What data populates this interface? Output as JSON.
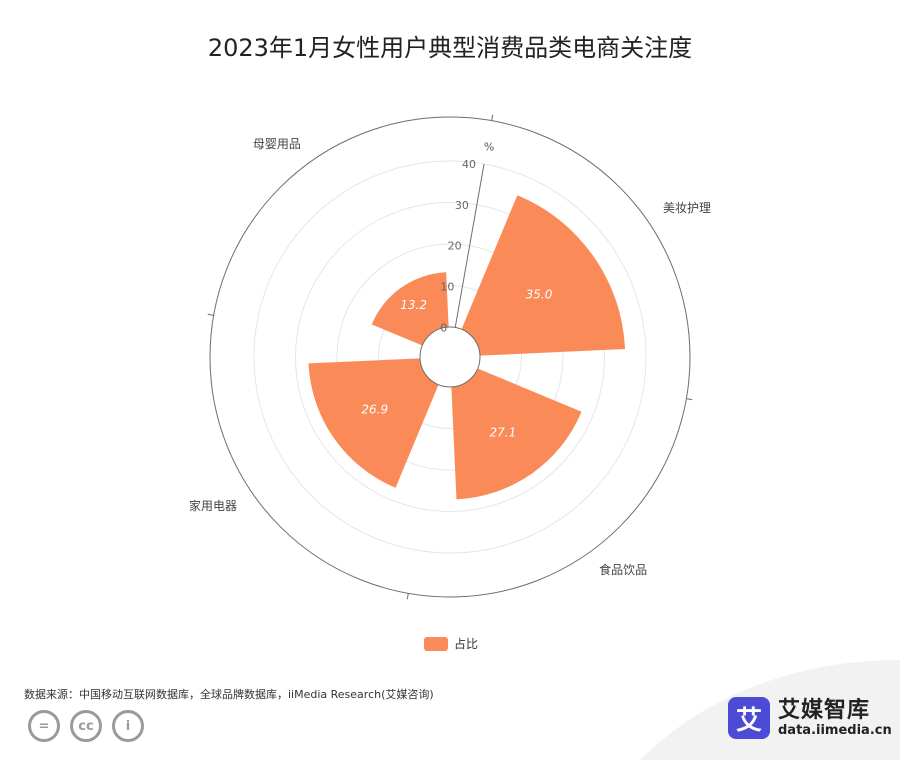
{
  "title": "2023年1月女性用户典型消费品类电商关注度",
  "colors": {
    "bar": "#fa8a58",
    "axis": "#6e6e6e",
    "grid": "#e6e6e6",
    "brand": "#4b4bd6"
  },
  "chart_data": {
    "type": "polar-bar",
    "unit": "%",
    "radius_ticks": [
      0,
      10,
      20,
      30,
      40
    ],
    "rmax": 40,
    "categories": [
      "美妆护理",
      "食品饮品",
      "家用电器",
      "母婴用品"
    ],
    "series": [
      {
        "name": "占比",
        "values": [
          35.0,
          27.1,
          26.9,
          13.2
        ],
        "labels": [
          "35.0",
          "27.1",
          "26.9",
          "13.2"
        ]
      }
    ]
  },
  "legend": {
    "label": "占比"
  },
  "source": "数据来源：中国移动互联网数据库，全球品牌数据库，iiMedia Research(艾媒咨询)",
  "brand": {
    "icon_char": "艾",
    "name": "艾媒智库",
    "url": "data.iimedia.cn"
  },
  "cc_icons": [
    "equal-icon",
    "cc-icon",
    "person-icon"
  ],
  "cc_glyphs": {
    "equal": "=",
    "cc": "cc",
    "person": "i"
  }
}
